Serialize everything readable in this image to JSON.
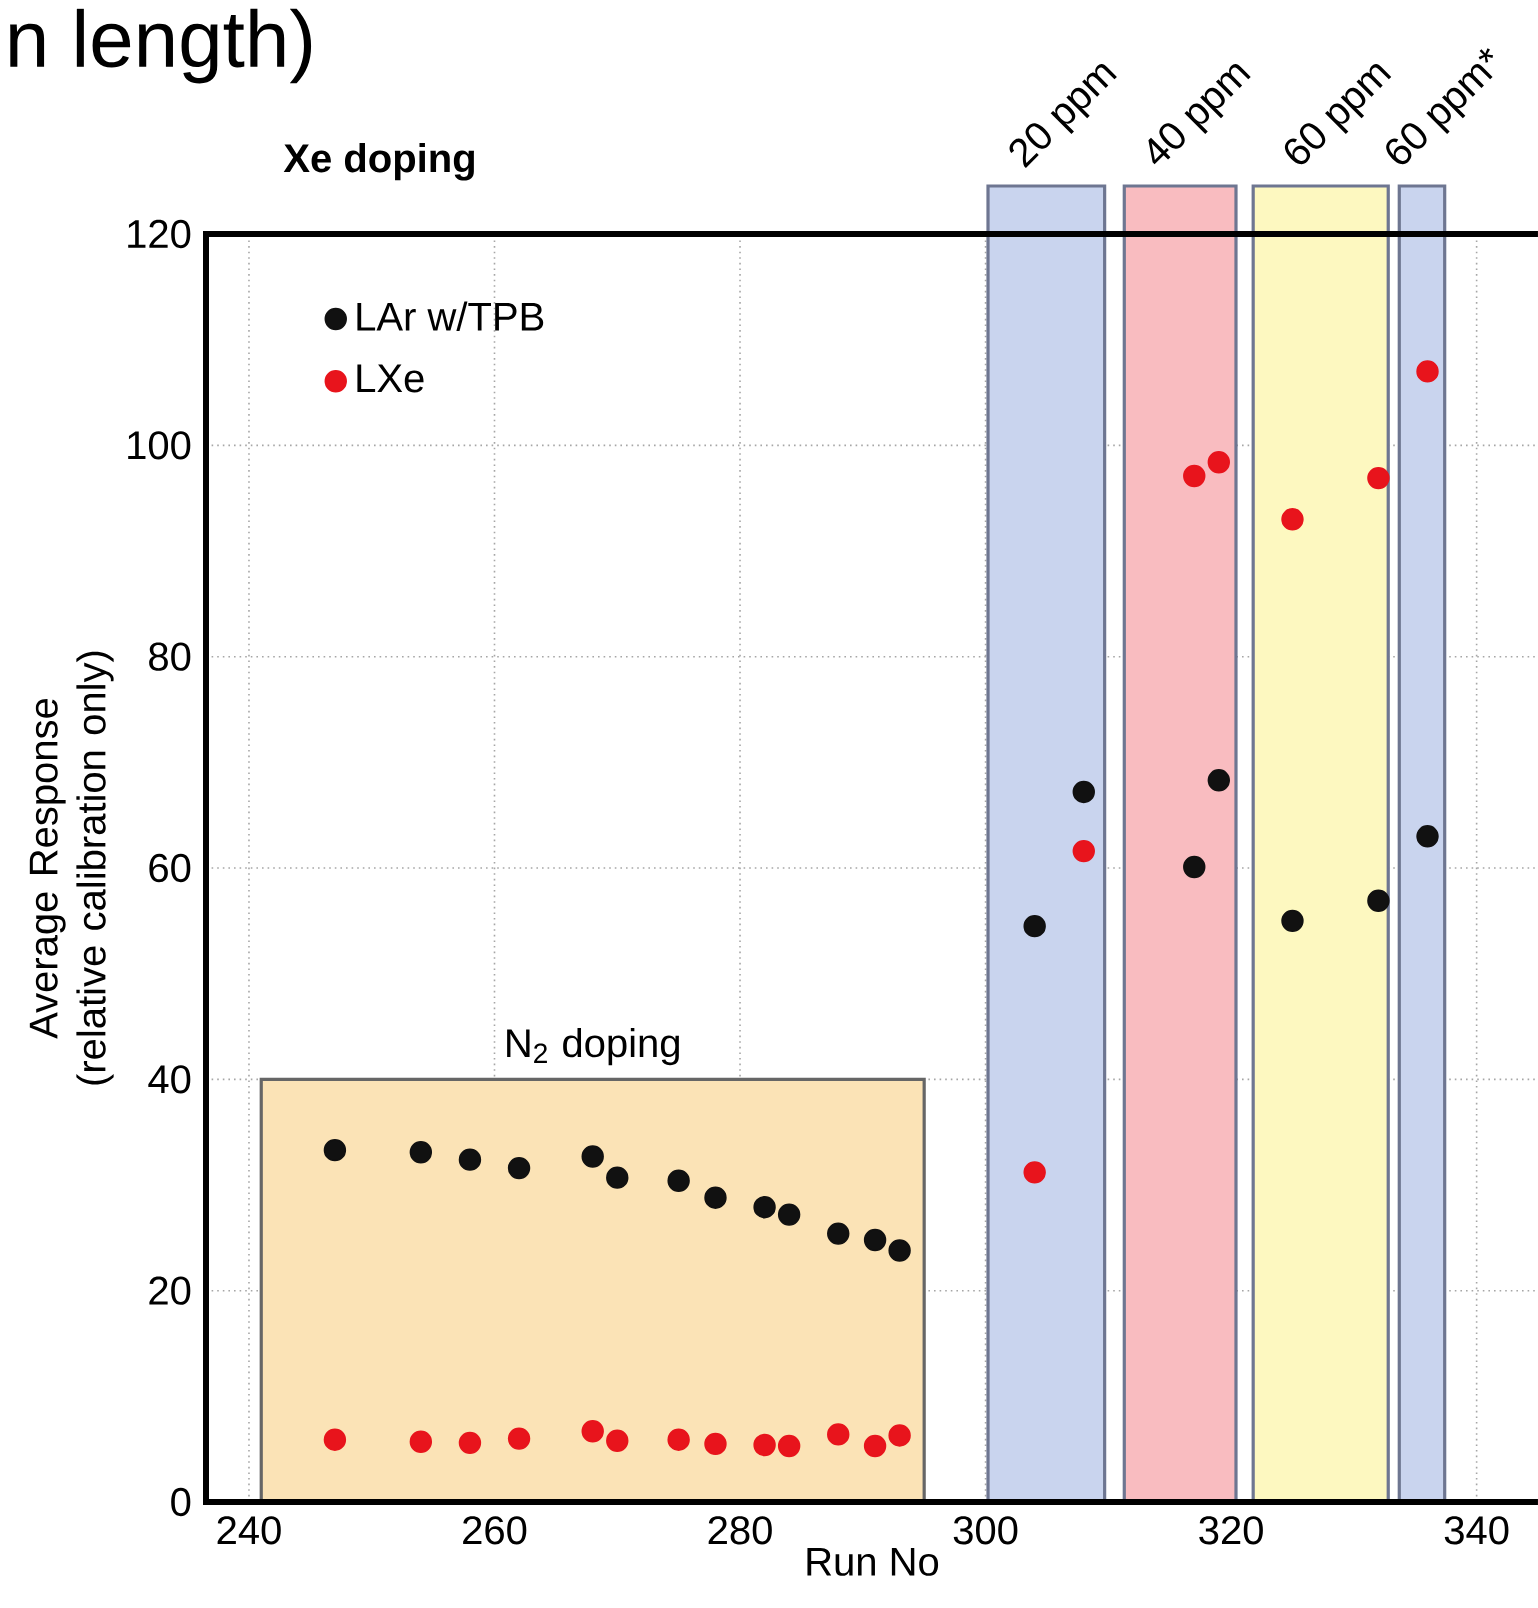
{
  "chart_data": {
    "type": "scatter",
    "annotations": [
      "n length)",
      "Xe doping",
      {
        "text": "N$_{2}$ doping",
        "x": 268,
        "y": 40
      }
    ],
    "xlabel": "Run No",
    "ylabel": "Average Response (relative calibration only)",
    "xlim": [
      236.5,
      345
    ],
    "ylim": [
      0,
      120
    ],
    "xticks": [
      240,
      260,
      280,
      300,
      320,
      340
    ],
    "yticks": [
      0,
      20,
      40,
      60,
      80,
      100,
      120
    ],
    "grid": true,
    "legend": "top left",
    "marker": "circle",
    "bands": [
      {
        "axis": "x",
        "from": 241,
        "to": 295,
        "color": "#fbe3b6"
      },
      {
        "axis": "x",
        "from": 300.2,
        "to": 309.7,
        "label": "20 ppm",
        "color": "#c9d4ee"
      },
      {
        "axis": "x",
        "from": 311.3,
        "to": 320.4,
        "label": "40 ppm",
        "color": "#f9bcc0"
      },
      {
        "axis": "x",
        "from": 321.8,
        "to": 332.8,
        "label": "60 ppm",
        "color": "#fdf8c0"
      },
      {
        "axis": "x",
        "from": 333.7,
        "to": 337.4,
        "label": "60 ppm*",
        "color": "#c9d4ee"
      }
    ],
    "series": [
      {
        "name": "LAr w/TPB",
        "color": "#111111",
        "x": [
          247,
          254,
          258,
          262,
          268,
          270,
          275,
          278,
          282,
          284,
          288,
          291,
          293,
          304,
          308,
          317,
          319,
          325,
          332,
          336
        ],
        "values": [
          33.3,
          33.1,
          32.4,
          31.6,
          32.7,
          30.7,
          30.4,
          28.8,
          27.9,
          27.2,
          25.4,
          24.8,
          23.8,
          54.5,
          67.2,
          60.1,
          68.3,
          55.0,
          56.9,
          63.0
        ]
      },
      {
        "name": "LXe",
        "color": "#e8141c",
        "x": [
          247,
          254,
          258,
          262,
          268,
          270,
          275,
          278,
          282,
          284,
          288,
          291,
          293,
          304,
          308,
          317,
          319,
          325,
          332,
          336
        ],
        "values": [
          5.9,
          5.7,
          5.6,
          6.0,
          6.7,
          5.8,
          5.9,
          5.5,
          5.4,
          5.3,
          6.4,
          5.3,
          6.3,
          31.2,
          61.6,
          97.1,
          98.4,
          93.0,
          96.9,
          107.0
        ]
      }
    ]
  }
}
